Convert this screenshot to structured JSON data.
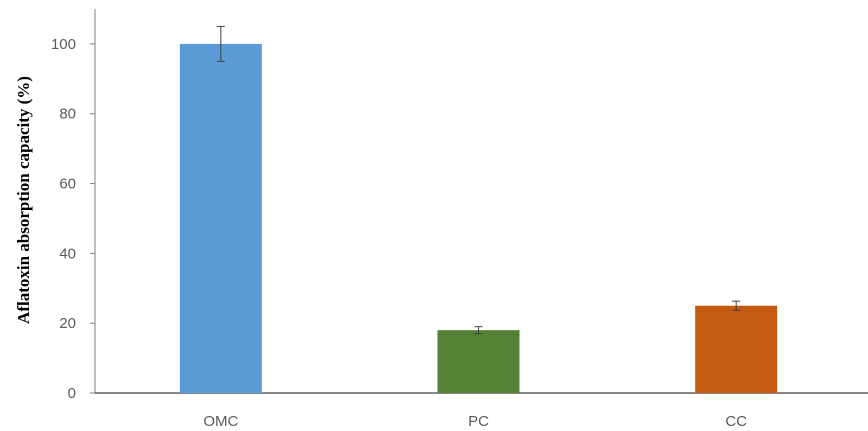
{
  "chart_data": {
    "type": "bar",
    "title": "",
    "xlabel": "",
    "ylabel": "Aflatoxin absorption capacity (%)",
    "categories": [
      "OMC",
      "PC",
      "CC"
    ],
    "values": [
      100,
      18,
      25
    ],
    "errors": [
      5,
      1,
      1.3
    ],
    "colors": [
      "#5b9bd5",
      "#538135",
      "#c55a11"
    ],
    "ylim": [
      0,
      110
    ],
    "yticks": [
      0,
      20,
      40,
      60,
      80,
      100
    ],
    "grid": false,
    "legend": "none"
  }
}
